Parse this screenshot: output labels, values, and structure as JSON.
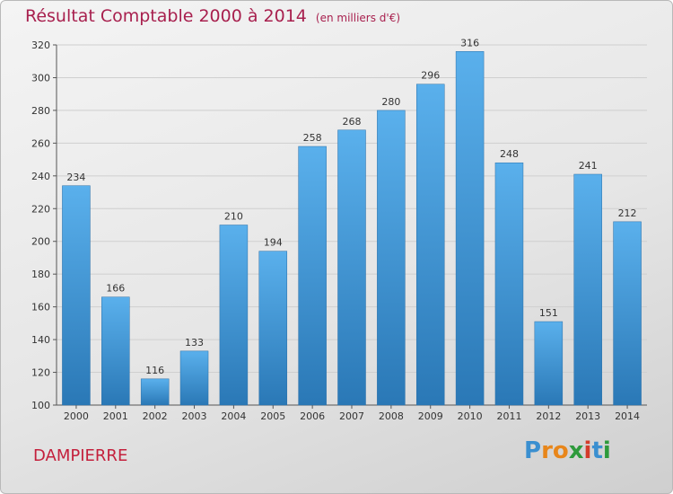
{
  "title": "Résultat Comptable 2000 à 2014",
  "title_unit": "(en milliers d'€)",
  "commune": "DAMPIERRE",
  "logo_text": "Proxiti",
  "colors": {
    "title": "#a8204e",
    "commune": "#c4203c",
    "bar_top": "#5ab0ec",
    "bar_bottom": "#2a78b6",
    "logo": [
      "#3a8fd0",
      "#e8861a",
      "#e8861a",
      "#2e9a3c",
      "#d43b2b",
      "#3a8fd0",
      "#2e9a3c"
    ]
  },
  "chart_data": {
    "type": "bar",
    "title": "Résultat Comptable 2000 à 2014",
    "ylabel": "",
    "xlabel": "",
    "categories": [
      "2000",
      "2001",
      "2002",
      "2003",
      "2004",
      "2005",
      "2006",
      "2007",
      "2008",
      "2009",
      "2010",
      "2011",
      "2012",
      "2013",
      "2014"
    ],
    "values": [
      234,
      166,
      116,
      133,
      210,
      194,
      258,
      268,
      280,
      296,
      316,
      248,
      151,
      241,
      212
    ],
    "ylim": [
      100,
      320
    ],
    "yticks": [
      100,
      120,
      140,
      160,
      180,
      200,
      220,
      240,
      260,
      280,
      300,
      320
    ],
    "grid": true,
    "data_labels": true
  }
}
